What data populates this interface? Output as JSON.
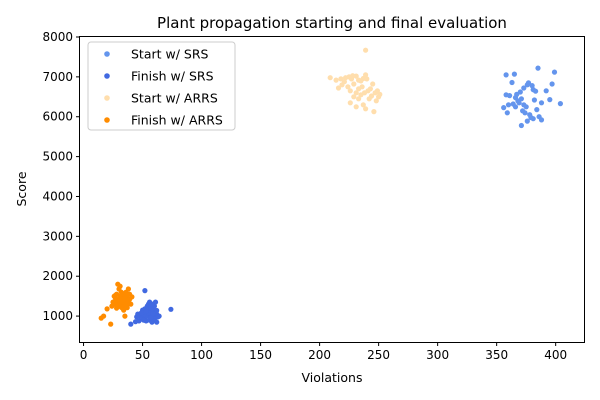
{
  "chart_data": {
    "type": "scatter",
    "title": "Plant propagation starting and final evaluation",
    "xlabel": "Violations",
    "ylabel": "Score",
    "xlim": [
      -3,
      424
    ],
    "ylim": [
      350,
      8000
    ],
    "xticks": [
      0,
      50,
      100,
      150,
      200,
      250,
      300,
      350,
      400
    ],
    "yticks": [
      1000,
      2000,
      3000,
      4000,
      5000,
      6000,
      7000,
      8000
    ],
    "grid": false,
    "legend_position": "top-left",
    "series": [
      {
        "name": "Start w/ SRS",
        "color": "#6495ed",
        "points": [
          [
            358,
            7050
          ],
          [
            365,
            7070
          ],
          [
            385,
            7220
          ],
          [
            399,
            7120
          ],
          [
            376,
            6800
          ],
          [
            380,
            6780
          ],
          [
            373,
            6720
          ],
          [
            381,
            6680
          ],
          [
            392,
            6650
          ],
          [
            363,
            6860
          ],
          [
            370,
            6620
          ],
          [
            358,
            6550
          ],
          [
            367,
            6560
          ],
          [
            397,
            6820
          ],
          [
            377,
            6850
          ],
          [
            383,
            6640
          ],
          [
            388,
            6350
          ],
          [
            382,
            6420
          ],
          [
            395,
            6430
          ],
          [
            404,
            6330
          ],
          [
            356,
            6230
          ],
          [
            360,
            6300
          ],
          [
            364,
            6320
          ],
          [
            366,
            6250
          ],
          [
            369,
            6350
          ],
          [
            371,
            6450
          ],
          [
            375,
            6250
          ],
          [
            372,
            6150
          ],
          [
            374,
            6100
          ],
          [
            378,
            6050
          ],
          [
            379,
            5980
          ],
          [
            384,
            6180
          ],
          [
            386,
            6000
          ],
          [
            388,
            5920
          ],
          [
            381,
            5950
          ],
          [
            376,
            5890
          ],
          [
            371,
            5780
          ],
          [
            359,
            6100
          ],
          [
            366,
            6480
          ],
          [
            368,
            6400
          ],
          [
            361,
            6530
          ],
          [
            373,
            6300
          ]
        ]
      },
      {
        "name": "Finish w/ SRS",
        "color": "#4169e1",
        "points": [
          [
            40,
            800
          ],
          [
            44,
            860
          ],
          [
            46,
            1050
          ],
          [
            47,
            880
          ],
          [
            48,
            1000
          ],
          [
            50,
            1150
          ],
          [
            50,
            950
          ],
          [
            51,
            1050
          ],
          [
            52,
            1180
          ],
          [
            53,
            1000
          ],
          [
            53,
            880
          ],
          [
            54,
            1250
          ],
          [
            54,
            1100
          ],
          [
            55,
            1000
          ],
          [
            55,
            1300
          ],
          [
            56,
            1150
          ],
          [
            56,
            900
          ],
          [
            57,
            1050
          ],
          [
            57,
            1200
          ],
          [
            58,
            850
          ],
          [
            58,
            1000
          ],
          [
            58,
            1100
          ],
          [
            59,
            1150
          ],
          [
            59,
            950
          ],
          [
            60,
            1050
          ],
          [
            60,
            1250
          ],
          [
            60,
            920
          ],
          [
            61,
            1100
          ],
          [
            61,
            1000
          ],
          [
            61,
            1350
          ],
          [
            62,
            850
          ],
          [
            62,
            1050
          ],
          [
            63,
            980
          ],
          [
            64,
            1000
          ],
          [
            52,
            1640
          ],
          [
            56,
            1350
          ],
          [
            74,
            1170
          ],
          [
            45,
            980
          ],
          [
            49,
            1080
          ],
          [
            58,
            1300
          ],
          [
            55,
            1080
          ],
          [
            53,
            1120
          ],
          [
            57,
            960
          ],
          [
            59,
            1060
          ],
          [
            62,
            1140
          ],
          [
            51,
            900
          ]
        ]
      },
      {
        "name": "Start w/ ARRS",
        "color": "#ffdead",
        "points": [
          [
            239,
            7670
          ],
          [
            209,
            6980
          ],
          [
            214,
            6920
          ],
          [
            218,
            6950
          ],
          [
            221,
            6880
          ],
          [
            222,
            6980
          ],
          [
            225,
            7000
          ],
          [
            227,
            6950
          ],
          [
            228,
            7030
          ],
          [
            231,
            7020
          ],
          [
            233,
            6920
          ],
          [
            235,
            6900
          ],
          [
            237,
            6960
          ],
          [
            239,
            7050
          ],
          [
            240,
            6950
          ],
          [
            216,
            6720
          ],
          [
            219,
            6800
          ],
          [
            224,
            6750
          ],
          [
            226,
            6650
          ],
          [
            229,
            6820
          ],
          [
            231,
            6600
          ],
          [
            233,
            6700
          ],
          [
            236,
            6750
          ],
          [
            238,
            6600
          ],
          [
            241,
            6650
          ],
          [
            243,
            6700
          ],
          [
            245,
            6820
          ],
          [
            247,
            6600
          ],
          [
            249,
            6650
          ],
          [
            251,
            6560
          ],
          [
            226,
            6350
          ],
          [
            229,
            6500
          ],
          [
            231,
            6250
          ],
          [
            233,
            6450
          ],
          [
            235,
            6550
          ],
          [
            237,
            6300
          ],
          [
            239,
            6200
          ],
          [
            242,
            6450
          ],
          [
            244,
            6520
          ],
          [
            246,
            6130
          ],
          [
            248,
            6400
          ],
          [
            250,
            6500
          ]
        ]
      },
      {
        "name": "Finish w/ ARRS",
        "color": "#ff8c00",
        "points": [
          [
            15,
            950
          ],
          [
            17,
            1000
          ],
          [
            20,
            1180
          ],
          [
            23,
            800
          ],
          [
            24,
            1250
          ],
          [
            26,
            1300
          ],
          [
            26,
            1500
          ],
          [
            27,
            1450
          ],
          [
            28,
            1550
          ],
          [
            28,
            1200
          ],
          [
            29,
            1350
          ],
          [
            29,
            1800
          ],
          [
            30,
            1250
          ],
          [
            30,
            1420
          ],
          [
            31,
            1500
          ],
          [
            31,
            1750
          ],
          [
            32,
            1300
          ],
          [
            32,
            1600
          ],
          [
            33,
            1450
          ],
          [
            33,
            1200
          ],
          [
            34,
            1550
          ],
          [
            34,
            1350
          ],
          [
            35,
            1000
          ],
          [
            35,
            1250
          ],
          [
            36,
            1400
          ],
          [
            36,
            1500
          ],
          [
            37,
            1300
          ],
          [
            37,
            1450
          ],
          [
            38,
            1680
          ],
          [
            38,
            1350
          ],
          [
            39,
            1420
          ],
          [
            39,
            1550
          ],
          [
            40,
            1300
          ],
          [
            41,
            1480
          ],
          [
            27,
            1520
          ],
          [
            30,
            1680
          ],
          [
            32,
            1220
          ],
          [
            34,
            1150
          ],
          [
            36,
            1600
          ],
          [
            29,
            1280
          ],
          [
            31,
            1380
          ],
          [
            33,
            1530
          ],
          [
            35,
            1470
          ],
          [
            37,
            1210
          ],
          [
            28,
            1400
          ],
          [
            25,
            1350
          ]
        ]
      }
    ]
  }
}
